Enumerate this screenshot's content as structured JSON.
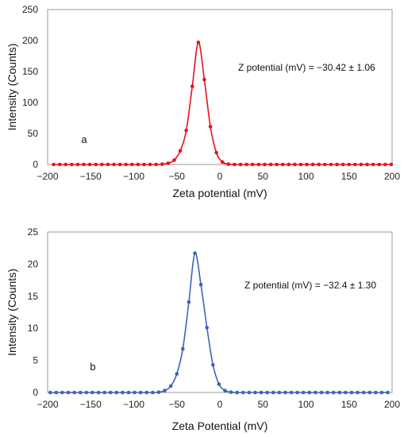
{
  "chart_data": [
    {
      "type": "line",
      "panel_label": "a",
      "xlabel": "Zeta potential (mV)",
      "ylabel": "Intensity (Counts)",
      "xlim": [
        -200,
        200
      ],
      "ylim": [
        0,
        250
      ],
      "x_ticks": [
        -200,
        -150,
        -100,
        -50,
        0,
        50,
        100,
        150,
        200
      ],
      "y_ticks": [
        0,
        50,
        100,
        150,
        200,
        250
      ],
      "x_tick_labels": [
        "−200",
        "−150",
        "−100",
        "−50",
        "0",
        "50",
        "100",
        "150",
        "200"
      ],
      "y_tick_labels": [
        "0",
        "50",
        "100",
        "150",
        "200",
        "250"
      ],
      "annotation": "Z potential (mV) =   −30.42 ± 1.06",
      "grid": false,
      "series": [
        {
          "color": "#e8121a",
          "x": [
            -193,
            -186,
            -179,
            -172,
            -165,
            -158,
            -151,
            -144,
            -137,
            -130,
            -123,
            -116,
            -109,
            -102,
            -95,
            -88,
            -81,
            -74,
            -67,
            -60,
            -53,
            -46,
            -39,
            -32,
            -25,
            -18,
            -11,
            -4,
            3,
            10,
            17,
            24,
            31,
            38,
            45,
            52,
            59,
            66,
            73,
            80,
            87,
            94,
            101,
            108,
            115,
            122,
            129,
            136,
            143,
            150,
            157,
            164,
            171,
            178,
            185,
            192,
            199
          ],
          "values": [
            0,
            0,
            0,
            0,
            0,
            0,
            0,
            0,
            0,
            0,
            0,
            0,
            0,
            0,
            0,
            0,
            0,
            0,
            0.5,
            2,
            7,
            22,
            55,
            126,
            197,
            137,
            61,
            19,
            4,
            0.5,
            0,
            0,
            0,
            0,
            0,
            0,
            0,
            0,
            0,
            0,
            0,
            0,
            0,
            0,
            0,
            0,
            0,
            0,
            0,
            0,
            0,
            0,
            0,
            0,
            0,
            0,
            0
          ]
        }
      ]
    },
    {
      "type": "line",
      "panel_label": "b",
      "xlabel": "Zeta Potential (mV)",
      "ylabel": "Intensity (Counts)",
      "xlim": [
        -200,
        200
      ],
      "ylim": [
        0,
        25
      ],
      "x_ticks": [
        -200,
        -150,
        -100,
        -50,
        0,
        50,
        100,
        150,
        200
      ],
      "y_ticks": [
        0,
        5,
        10,
        15,
        20,
        25
      ],
      "x_tick_labels": [
        "−200",
        "−150",
        "−100",
        "−50",
        "0",
        "50",
        "100",
        "150",
        "200"
      ],
      "y_tick_labels": [
        "0",
        "5",
        "10",
        "15",
        "20",
        "25"
      ],
      "annotation": "Z potential (mV) = −32.4 ± 1.30",
      "grid": false,
      "series": [
        {
          "color": "#3d63b8",
          "x": [
            -197,
            -190,
            -183,
            -176,
            -169,
            -162,
            -155,
            -148,
            -141,
            -134,
            -127,
            -120,
            -113,
            -106,
            -99,
            -92,
            -85,
            -78,
            -71,
            -64,
            -57,
            -50,
            -43,
            -36,
            -29,
            -22,
            -15,
            -8,
            -1,
            6,
            13,
            20,
            27,
            34,
            41,
            48,
            55,
            62,
            69,
            76,
            83,
            90,
            97,
            104,
            111,
            118,
            125,
            132,
            139,
            146,
            153,
            160,
            167,
            174,
            181,
            188,
            195
          ],
          "values": [
            0,
            0,
            0,
            0,
            0,
            0,
            0,
            0,
            0,
            0,
            0,
            0,
            0,
            0,
            0,
            0,
            0,
            0,
            0.05,
            0.3,
            1.0,
            2.9,
            6.8,
            14.1,
            21.7,
            16.8,
            10.1,
            4.3,
            1.3,
            0.3,
            0.05,
            0,
            0,
            0,
            0,
            0,
            0,
            0,
            0,
            0,
            0,
            0,
            0,
            0,
            0,
            0,
            0,
            0,
            0,
            0,
            0,
            0,
            0,
            0,
            0,
            0,
            0
          ]
        }
      ]
    }
  ]
}
